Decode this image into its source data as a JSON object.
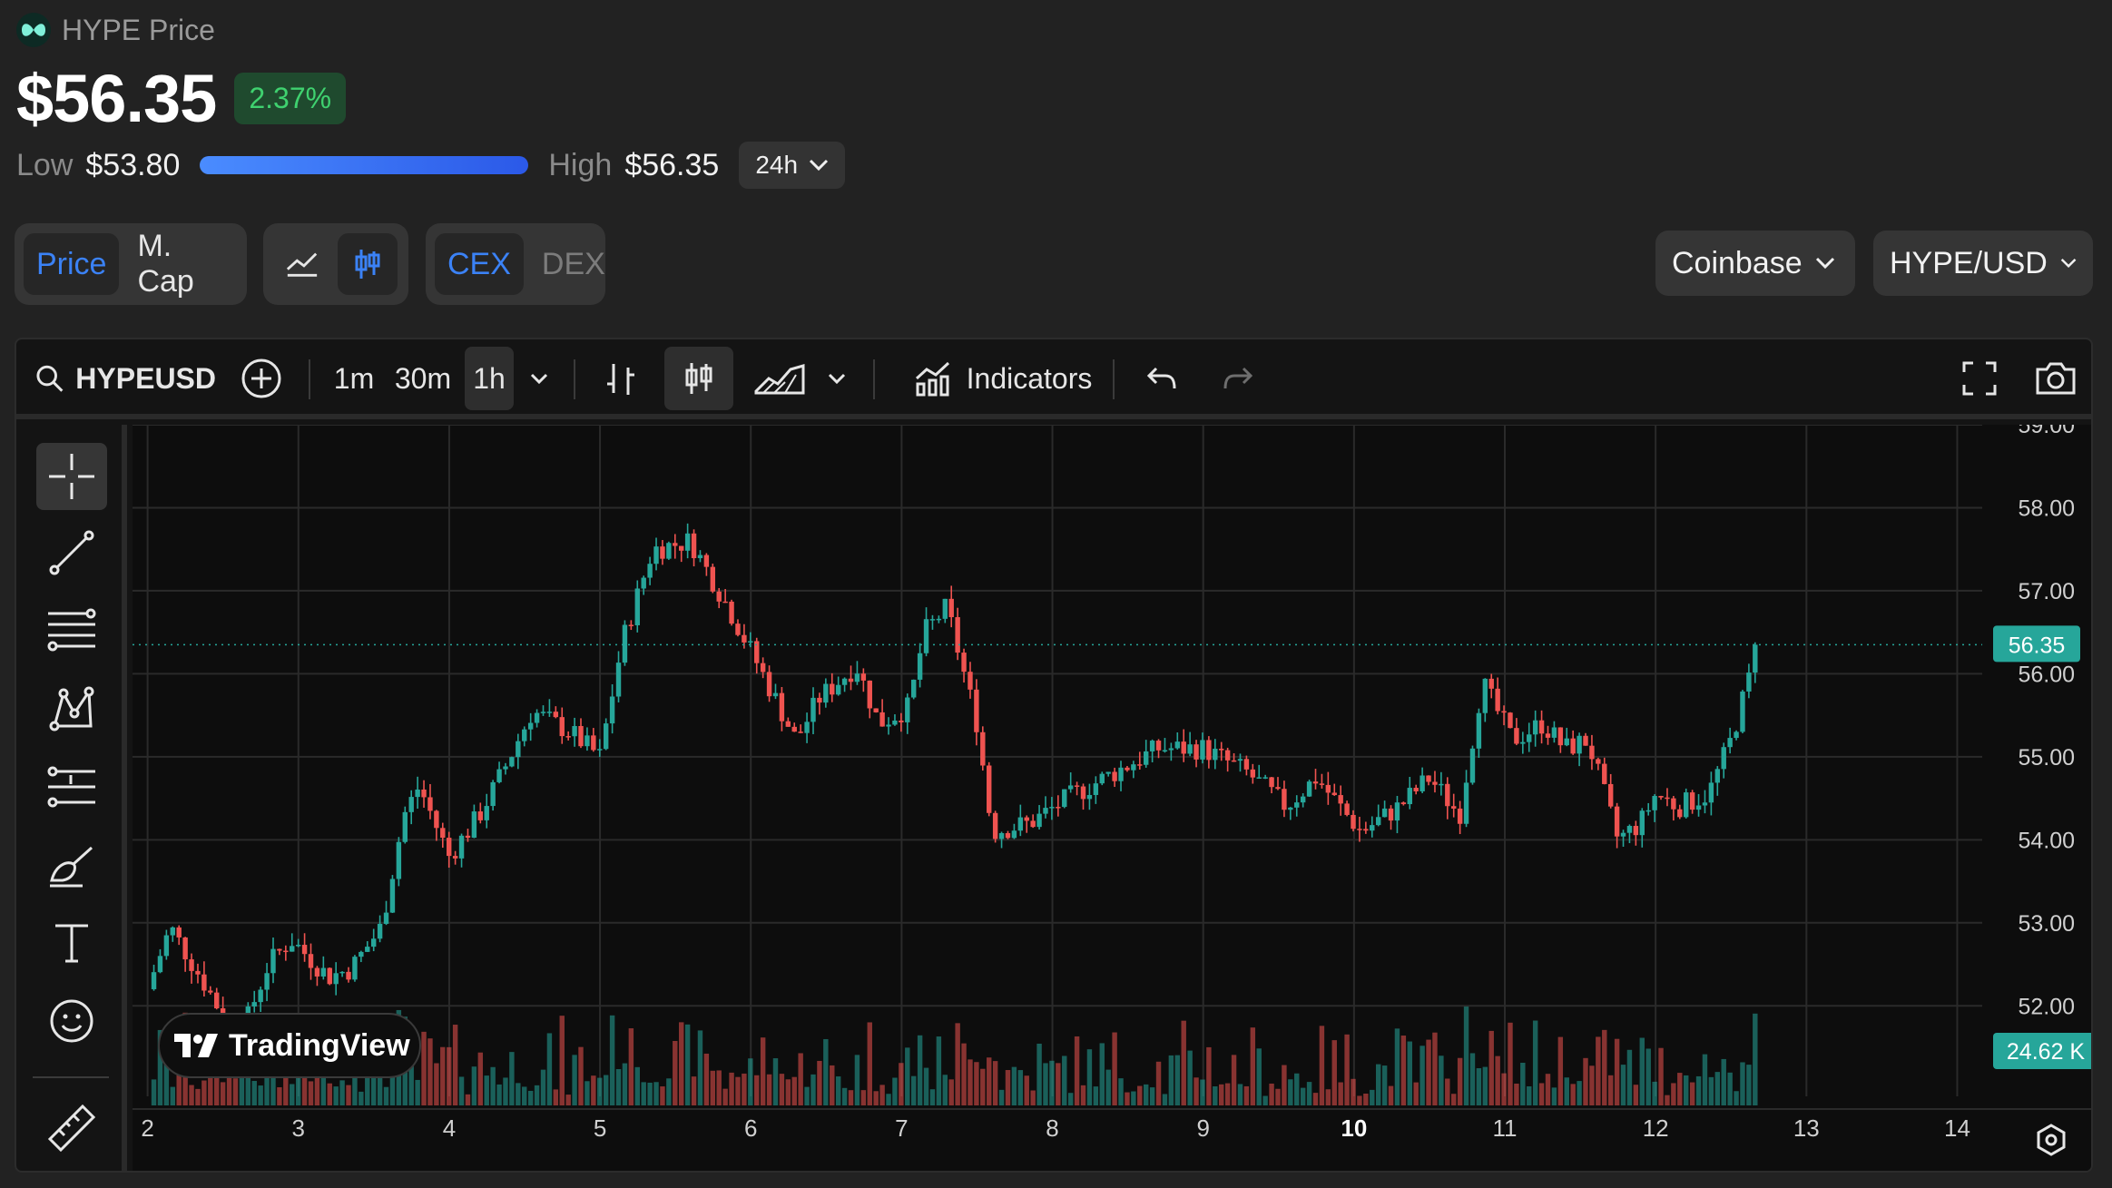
{
  "header": {
    "title": "HYPE Price",
    "price": "$56.35",
    "change": "2.37%",
    "low_label": "Low",
    "low_value": "$53.80",
    "high_label": "High",
    "high_value": "$56.35",
    "period": "24h"
  },
  "toggles": {
    "metric": [
      "Price",
      "M. Cap"
    ],
    "metric_active": "Price",
    "venue": [
      "CEX",
      "DEX"
    ],
    "venue_active": "CEX",
    "chart_style_active": "candles-icon"
  },
  "selectors": {
    "exchange": "Coinbase",
    "pair": "HYPE/USD"
  },
  "toolbar": {
    "symbol": "HYPEUSD",
    "intervals": [
      "1m",
      "30m",
      "1h"
    ],
    "active_interval": "1h",
    "indicators": "Indicators"
  },
  "sidebar_tools": [
    "crosshair-icon",
    "trend-line-icon",
    "horizontal-lines-icon",
    "pattern-icon",
    "measure-lines-icon",
    "brush-icon",
    "text-tool-icon",
    "emoji-icon",
    "ruler-icon"
  ],
  "watermark": "TradingView",
  "colors": {
    "up": "#26a69a",
    "down": "#ef5350",
    "accent": "#3b82f6",
    "positive": "#3fd16f"
  },
  "chart_data": {
    "type": "candlestick",
    "x_tick_labels": [
      "2",
      "3",
      "4",
      "5",
      "6",
      "7",
      "8",
      "9",
      "10",
      "11",
      "12",
      "13",
      "14"
    ],
    "x_range": [
      1.9,
      14.9
    ],
    "y_tick_labels": [
      "59.00",
      "58.00",
      "57.00",
      "56.00",
      "55.00",
      "54.00",
      "53.00",
      "52.00"
    ],
    "ylim": [
      51.5,
      59.0
    ],
    "last_price": "56.35",
    "last_volume": "24.62 K",
    "grid": true,
    "trend": [
      {
        "x": 2.0,
        "y": 52.2
      },
      {
        "x": 2.15,
        "y": 52.95
      },
      {
        "x": 2.4,
        "y": 52.2
      },
      {
        "x": 2.6,
        "y": 51.55
      },
      {
        "x": 2.8,
        "y": 52.5
      },
      {
        "x": 2.95,
        "y": 52.8
      },
      {
        "x": 3.2,
        "y": 52.35
      },
      {
        "x": 3.35,
        "y": 52.45
      },
      {
        "x": 3.55,
        "y": 52.95
      },
      {
        "x": 3.7,
        "y": 54.3
      },
      {
        "x": 3.8,
        "y": 54.65
      },
      {
        "x": 4.0,
        "y": 53.8
      },
      {
        "x": 4.2,
        "y": 54.3
      },
      {
        "x": 4.35,
        "y": 54.8
      },
      {
        "x": 4.55,
        "y": 55.55
      },
      {
        "x": 4.8,
        "y": 55.3
      },
      {
        "x": 5.0,
        "y": 55.0
      },
      {
        "x": 5.15,
        "y": 56.4
      },
      {
        "x": 5.35,
        "y": 57.5
      },
      {
        "x": 5.6,
        "y": 57.6
      },
      {
        "x": 5.85,
        "y": 56.8
      },
      {
        "x": 6.05,
        "y": 56.1
      },
      {
        "x": 6.3,
        "y": 55.2
      },
      {
        "x": 6.45,
        "y": 55.7
      },
      {
        "x": 6.7,
        "y": 56.1
      },
      {
        "x": 6.85,
        "y": 55.4
      },
      {
        "x": 7.05,
        "y": 55.6
      },
      {
        "x": 7.15,
        "y": 56.5
      },
      {
        "x": 7.3,
        "y": 56.8
      },
      {
        "x": 7.5,
        "y": 55.4
      },
      {
        "x": 7.6,
        "y": 54.1
      },
      {
        "x": 7.85,
        "y": 54.2
      },
      {
        "x": 8.1,
        "y": 54.5
      },
      {
        "x": 8.4,
        "y": 54.8
      },
      {
        "x": 8.7,
        "y": 55.1
      },
      {
        "x": 9.0,
        "y": 55.1
      },
      {
        "x": 9.3,
        "y": 54.8
      },
      {
        "x": 9.55,
        "y": 54.4
      },
      {
        "x": 9.75,
        "y": 54.75
      },
      {
        "x": 9.95,
        "y": 54.3
      },
      {
        "x": 10.05,
        "y": 54.1
      },
      {
        "x": 10.3,
        "y": 54.4
      },
      {
        "x": 10.5,
        "y": 54.75
      },
      {
        "x": 10.7,
        "y": 54.3
      },
      {
        "x": 10.85,
        "y": 55.9
      },
      {
        "x": 11.05,
        "y": 55.2
      },
      {
        "x": 11.25,
        "y": 55.4
      },
      {
        "x": 11.4,
        "y": 55.1
      },
      {
        "x": 11.55,
        "y": 55.2
      },
      {
        "x": 11.75,
        "y": 54.0
      },
      {
        "x": 11.9,
        "y": 54.2
      },
      {
        "x": 12.0,
        "y": 54.55
      },
      {
        "x": 12.15,
        "y": 54.4
      },
      {
        "x": 12.35,
        "y": 54.55
      },
      {
        "x": 12.5,
        "y": 55.2
      },
      {
        "x": 12.62,
        "y": 55.95
      },
      {
        "x": 12.66,
        "y": 56.35
      }
    ]
  }
}
